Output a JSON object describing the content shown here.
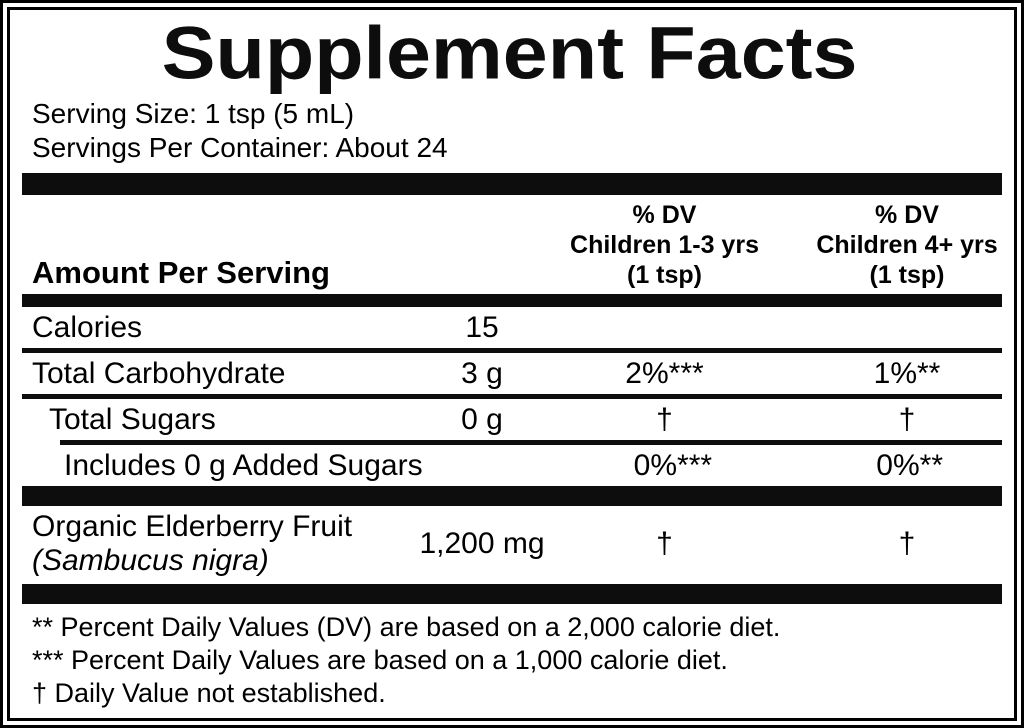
{
  "label": {
    "title": "Supplement Facts",
    "serving_size": "Serving Size: 1 tsp (5 mL)",
    "servings_per_container": "Servings Per Container: About 24",
    "columns": {
      "amount_heading": "Amount Per Serving",
      "dv_children_1_3": [
        "% DV",
        "Children 1-3 yrs",
        "(1 tsp)"
      ],
      "dv_children_4plus": [
        "% DV",
        "Children 4+ yrs",
        "(1 tsp)"
      ]
    },
    "rows": [
      {
        "name": "Calories",
        "amount": "15",
        "dv1": "",
        "dv2": ""
      },
      {
        "name": "Total Carbohydrate",
        "amount": "3 g",
        "dv1": "2%***",
        "dv2": "1%**"
      },
      {
        "name": "Total Sugars",
        "amount": "0 g",
        "dv1": "†",
        "dv2": "†"
      },
      {
        "name": "Includes 0 g Added Sugars",
        "amount": "",
        "dv1": "0%***",
        "dv2": "0%**"
      }
    ],
    "ingredient_row": {
      "name": "Organic Elderberry Fruit",
      "botanical_name": "(Sambucus nigra)",
      "amount": "1,200 mg",
      "dv1": "†",
      "dv2": "†"
    },
    "footnotes": [
      "** Percent Daily Values (DV) are based on a 2,000 calorie diet.",
      "*** Percent Daily Values are based on a 1,000 calorie diet.",
      "† Daily Value not established."
    ],
    "colors": {
      "text": "#000000",
      "background": "#ffffff"
    }
  }
}
